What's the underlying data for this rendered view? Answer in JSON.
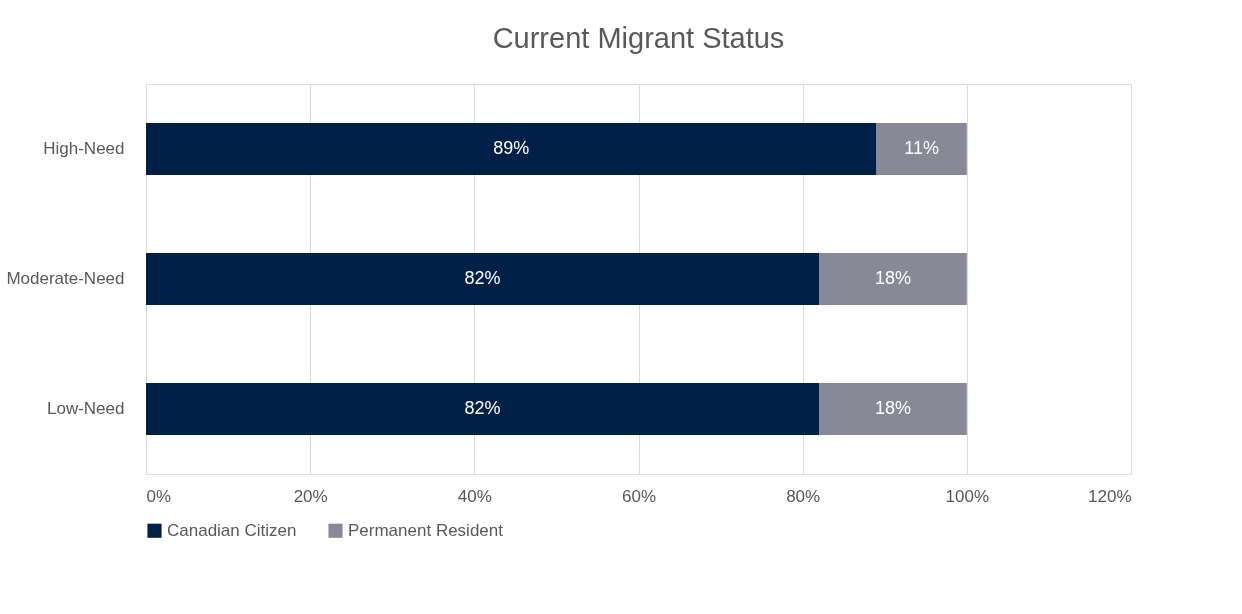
{
  "chart_data": {
    "type": "bar",
    "orientation": "horizontal",
    "stacked": true,
    "title": "Current Migrant Status",
    "categories": [
      "High-Need",
      "Moderate-Need",
      "Low-Need"
    ],
    "series": [
      {
        "name": "Canadian Citizen",
        "color": "#002147",
        "values": [
          89,
          82,
          82
        ],
        "value_labels": [
          "89%",
          "82%",
          "82%"
        ]
      },
      {
        "name": "Permanent Resident",
        "color": "#878a96",
        "values": [
          11,
          18,
          18
        ],
        "value_labels": [
          "11%",
          "18%",
          "18%"
        ]
      }
    ],
    "xlim": [
      0,
      120
    ],
    "xticks": [
      {
        "value": 0,
        "label": "0%"
      },
      {
        "value": 20,
        "label": "20%"
      },
      {
        "value": 40,
        "label": "40%"
      },
      {
        "value": 60,
        "label": "60%"
      },
      {
        "value": 80,
        "label": "80%"
      },
      {
        "value": 100,
        "label": "100%"
      },
      {
        "value": 120,
        "label": "120%"
      }
    ],
    "grid": "x",
    "legend": "bottom"
  }
}
